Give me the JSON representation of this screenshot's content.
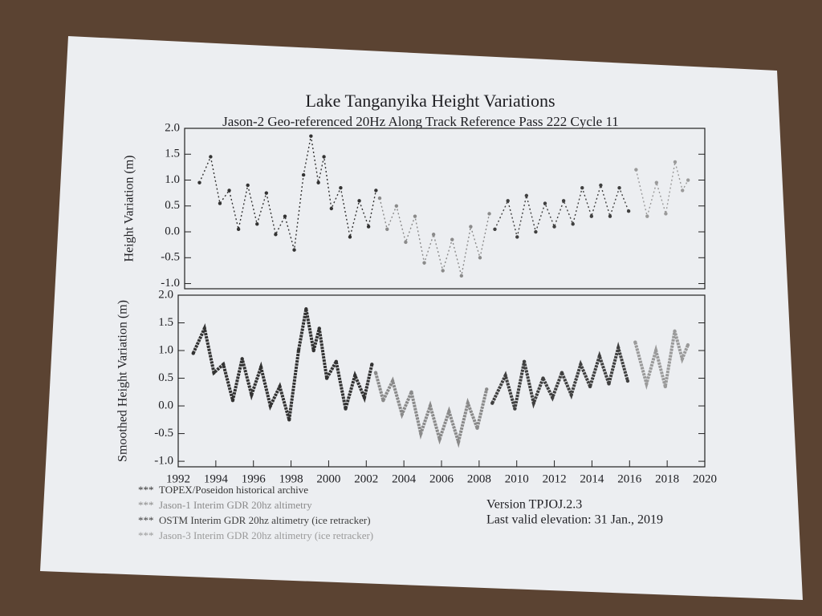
{
  "chart_data": [
    {
      "type": "line",
      "title": "Lake Tanganyika Height Variations",
      "subtitle": "Jason-2 Geo-referenced 20Hz Along Track Reference Pass 222 Cycle  11",
      "y_label": "Height Variation (m)",
      "xlim": [
        1992,
        2020
      ],
      "ylim": [
        -1.1,
        2.0
      ],
      "yticks": [
        {
          "value": 2.0,
          "label": "2.0"
        },
        1.5,
        {
          "value": 1.0,
          "label": "1.0"
        },
        0.5,
        {
          "value": 0.0,
          "label": "0.0"
        },
        -0.5,
        {
          "value": -1.0,
          "label": "-1.0"
        }
      ],
      "series": [
        {
          "color": "#333333",
          "x": [
            1992.8,
            1993.4,
            1993.9,
            1994.4,
            1994.9,
            1995.4,
            1995.9,
            1996.4,
            1996.9,
            1997.4,
            1997.9,
            1998.4,
            1998.8,
            1999.2,
            1999.5,
            1999.9,
            2000.4,
            2000.9,
            2001.4,
            2001.9,
            2002.3
          ],
          "values": [
            0.95,
            1.45,
            0.55,
            0.8,
            0.05,
            0.9,
            0.15,
            0.75,
            -0.05,
            0.3,
            -0.35,
            1.1,
            1.85,
            0.95,
            1.45,
            0.45,
            0.85,
            -0.1,
            0.6,
            0.1,
            0.8
          ]
        },
        {
          "color": "#8a8a8a",
          "x": [
            2002.5,
            2002.9,
            2003.4,
            2003.9,
            2004.4,
            2004.9,
            2005.4,
            2005.9,
            2006.4,
            2006.9,
            2007.4,
            2007.9,
            2008.4
          ],
          "values": [
            0.65,
            0.05,
            0.5,
            -0.2,
            0.3,
            -0.6,
            -0.05,
            -0.75,
            -0.15,
            -0.85,
            0.1,
            -0.5,
            0.35
          ]
        },
        {
          "color": "#404040",
          "x": [
            2008.7,
            2009.4,
            2009.9,
            2010.4,
            2010.9,
            2011.4,
            2011.9,
            2012.4,
            2012.9,
            2013.4,
            2013.9,
            2014.4,
            2014.9,
            2015.4,
            2015.9
          ],
          "values": [
            0.05,
            0.6,
            -0.1,
            0.7,
            0.0,
            0.55,
            0.1,
            0.6,
            0.15,
            0.85,
            0.3,
            0.9,
            0.3,
            0.85,
            0.4
          ]
        },
        {
          "color": "#9a9a9a",
          "x": [
            2016.3,
            2016.9,
            2017.4,
            2017.9,
            2018.4,
            2018.8,
            2019.1
          ],
          "values": [
            1.2,
            0.3,
            0.95,
            0.35,
            1.35,
            0.8,
            1.0
          ]
        }
      ]
    },
    {
      "type": "line",
      "y_label": "Smoothed Height Variation (m)",
      "xlim": [
        1992,
        2020
      ],
      "ylim": [
        -1.1,
        2.0
      ],
      "xticks": [
        1992,
        1994,
        1996,
        1998,
        2000,
        2002,
        2004,
        2006,
        2008,
        2010,
        2012,
        2014,
        2016,
        2018,
        2020
      ],
      "yticks": [
        {
          "value": 2.0,
          "label": "2.0"
        },
        1.5,
        {
          "value": 1.0,
          "label": "1.0"
        },
        0.5,
        {
          "value": 0.0,
          "label": "0.0"
        },
        -0.5,
        {
          "value": -1.0,
          "label": "-1.0"
        }
      ],
      "legend_marker": "***",
      "series": [
        {
          "name": "TOPEX/Poseidon historical archive",
          "color": "#333333",
          "x": [
            1992.8,
            1993.4,
            1993.9,
            1994.4,
            1994.9,
            1995.4,
            1995.9,
            1996.4,
            1996.9,
            1997.4,
            1997.9,
            1998.4,
            1998.8,
            1999.2,
            1999.5,
            1999.9,
            2000.4,
            2000.9,
            2001.4,
            2001.9,
            2002.3
          ],
          "values": [
            0.95,
            1.4,
            0.6,
            0.75,
            0.1,
            0.85,
            0.2,
            0.7,
            0.0,
            0.35,
            -0.25,
            1.0,
            1.75,
            1.0,
            1.4,
            0.5,
            0.8,
            -0.05,
            0.55,
            0.15,
            0.75
          ]
        },
        {
          "name": "Jason-1 Interim GDR 20hz altimetry",
          "color": "#8a8a8a",
          "x": [
            2002.5,
            2002.9,
            2003.4,
            2003.9,
            2004.4,
            2004.9,
            2005.4,
            2005.9,
            2006.4,
            2006.9,
            2007.4,
            2007.9,
            2008.4
          ],
          "values": [
            0.6,
            0.1,
            0.45,
            -0.15,
            0.25,
            -0.5,
            0.0,
            -0.6,
            -0.1,
            -0.65,
            0.05,
            -0.4,
            0.3
          ]
        },
        {
          "name": "OSTM  Interim GDR 20hz altimetry (ice retracker)",
          "color": "#404040",
          "x": [
            2008.7,
            2009.4,
            2009.9,
            2010.4,
            2010.9,
            2011.4,
            2011.9,
            2012.4,
            2012.9,
            2013.4,
            2013.9,
            2014.4,
            2014.9,
            2015.4,
            2015.9
          ],
          "values": [
            0.05,
            0.55,
            -0.05,
            0.8,
            0.05,
            0.5,
            0.15,
            0.6,
            0.2,
            0.75,
            0.35,
            0.9,
            0.4,
            1.05,
            0.45
          ]
        },
        {
          "name": "Jason-3  Interim GDR 20hz altimetry (ice retracker)",
          "color": "#9a9a9a",
          "x": [
            2016.3,
            2016.9,
            2017.4,
            2017.9,
            2018.4,
            2018.8,
            2019.1
          ],
          "values": [
            1.15,
            0.4,
            1.0,
            0.35,
            1.35,
            0.85,
            1.1
          ]
        }
      ],
      "annotations": [
        "Version TPJOJ.2.3",
        "Last valid elevation: 31 Jan.,  2019"
      ]
    }
  ]
}
